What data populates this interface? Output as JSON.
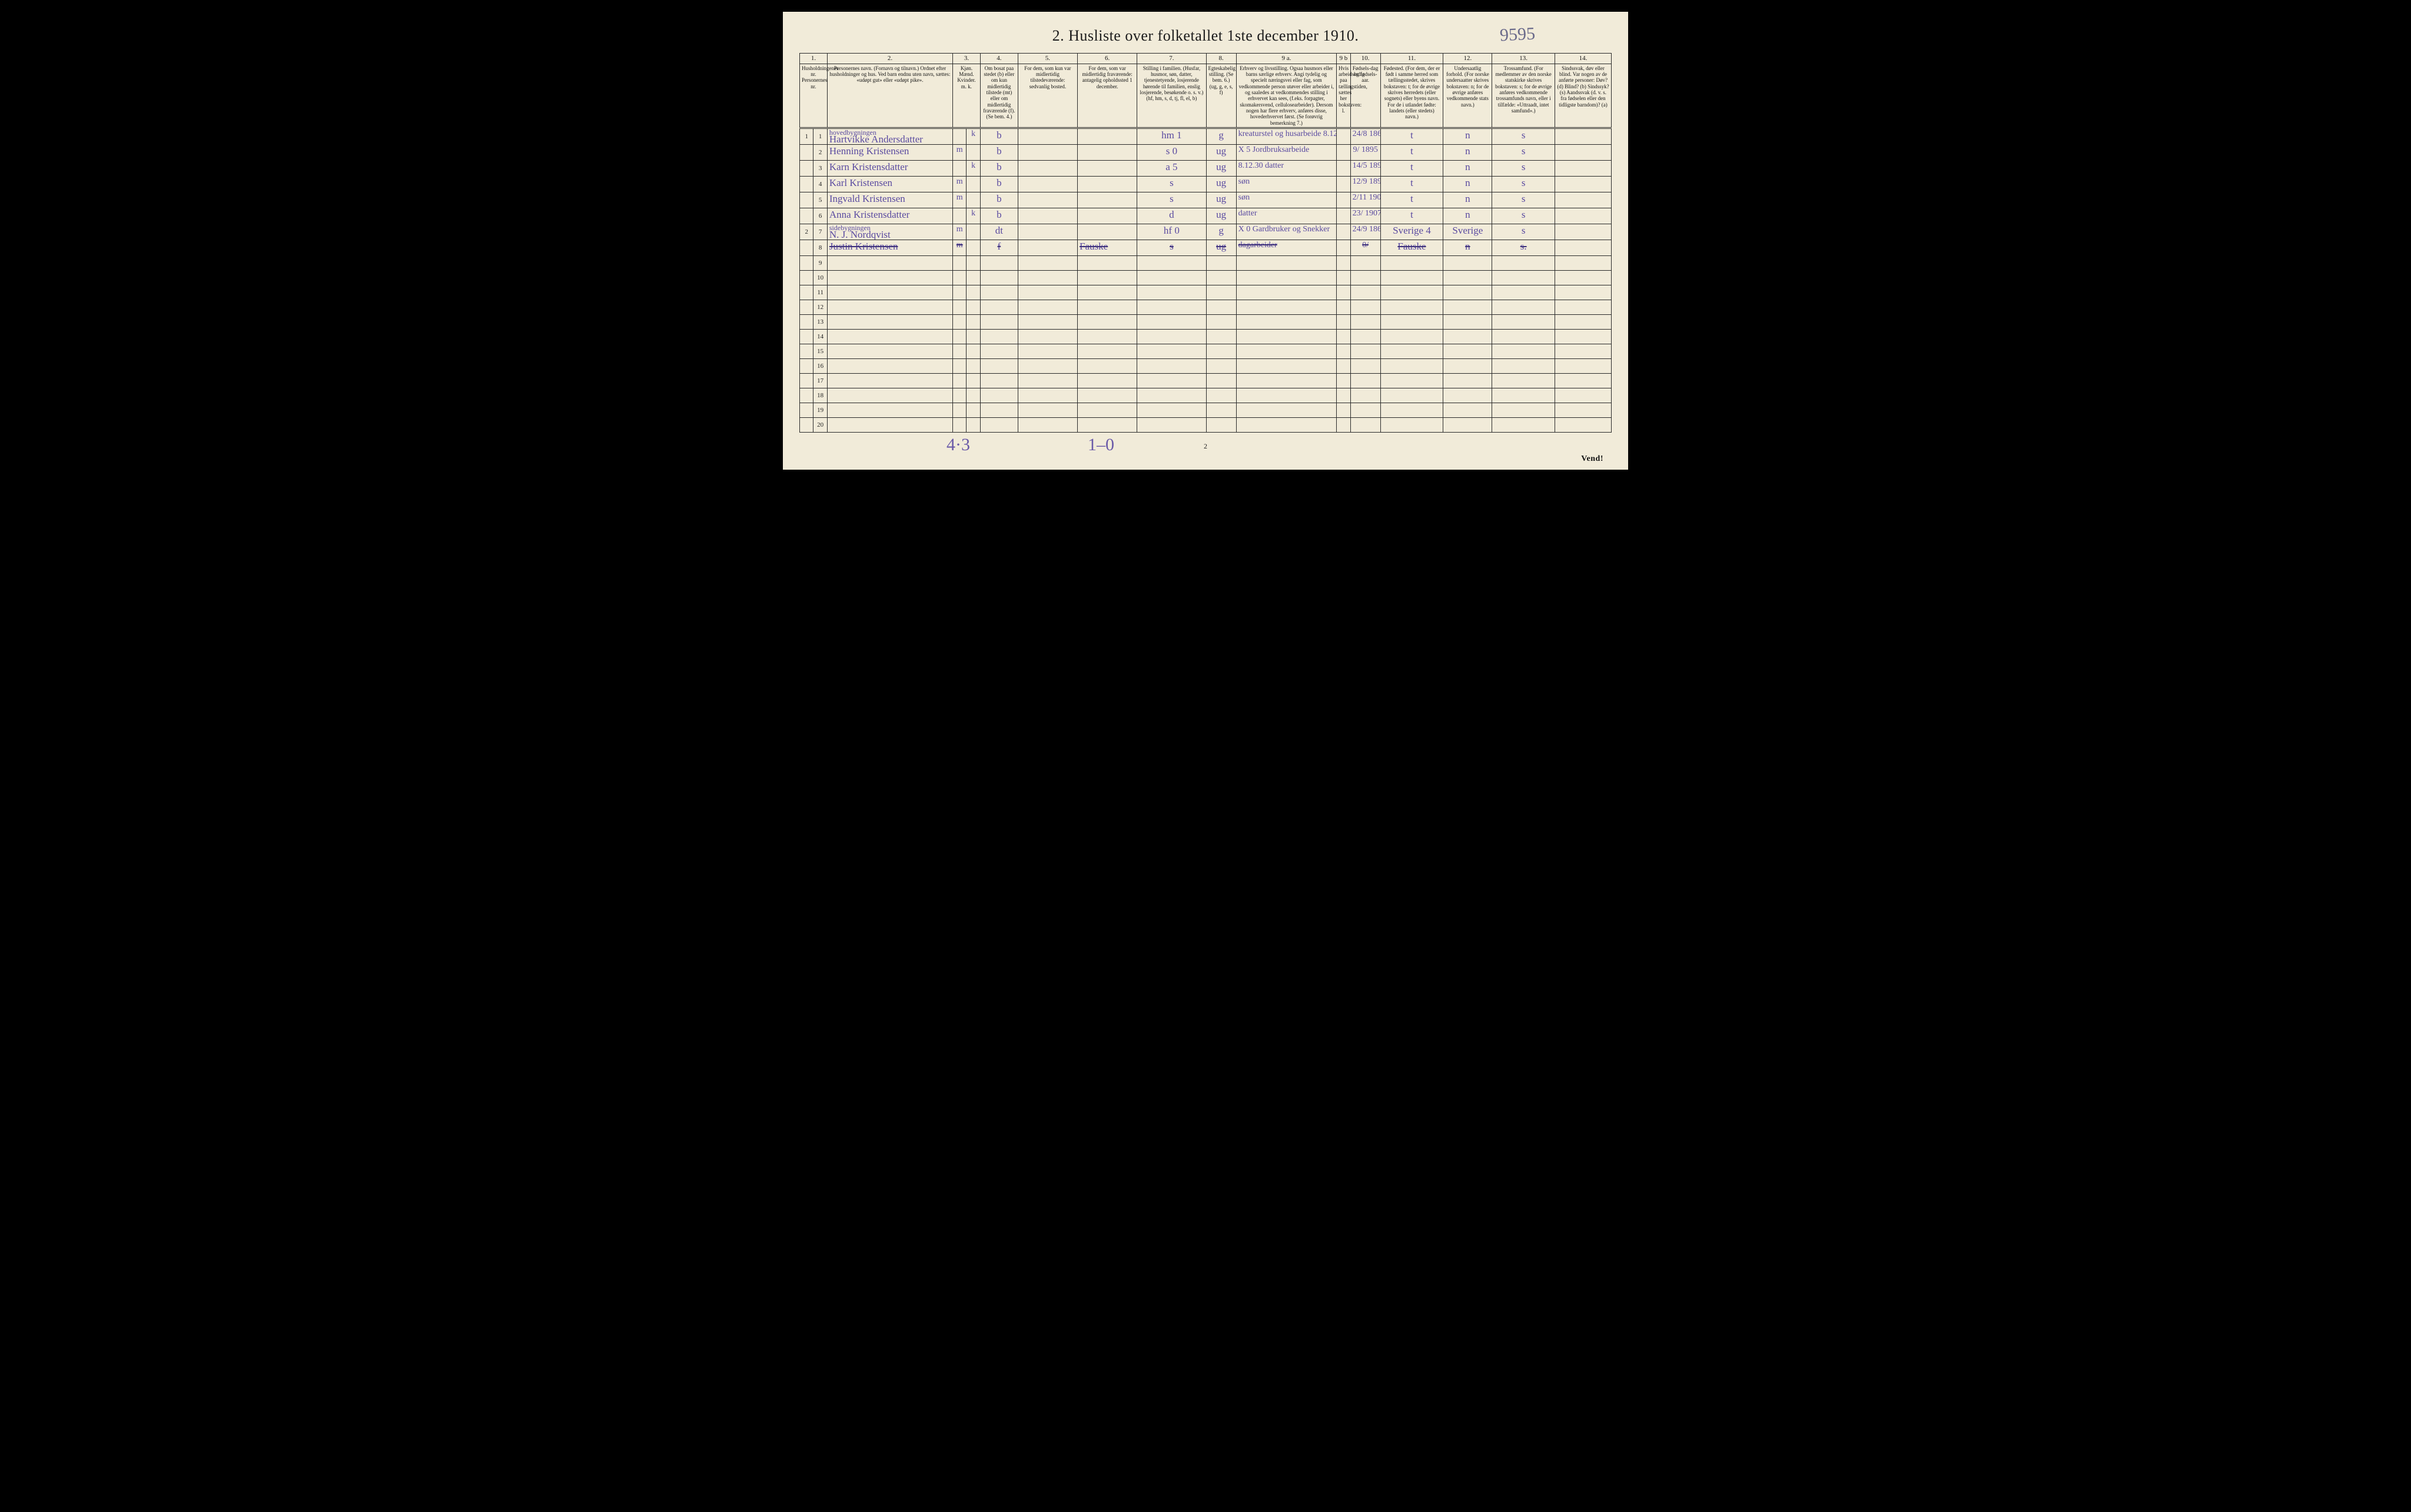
{
  "title": "2.  Husliste over folketallet 1ste december 1910.",
  "top_annotation": "9595",
  "page_number_bottom": "2",
  "vend_label": "Vend!",
  "footer_tallies": {
    "left": "4·3",
    "right": "1–0"
  },
  "colors": {
    "paper": "#f1ebd9",
    "ink": "#1b1b1b",
    "rule": "#2a2a2a",
    "handwriting": "#5a4aa0",
    "background": "#000000"
  },
  "header_numbers": [
    "1.",
    "2.",
    "3.",
    "4.",
    "5.",
    "6.",
    "7.",
    "8.",
    "9 a.",
    "9 b",
    "10.",
    "11.",
    "12.",
    "13.",
    "14."
  ],
  "header_text": {
    "c1": "Husholdningenes nr.\nPersonernes nr.",
    "c2": "Personernes navn.\n(Fornavn og tilnavn.)\nOrdnet efter husholdninger og hus.\nVed barn endnu uten navn, sættes: «udøpt gut» eller «udøpt pike».",
    "c3": "Kjøn.\nMænd.  Kvinder.\nm.  k.",
    "c4": "Om bosat paa stedet (b) eller om kun midlertidig tilstede (mt) eller om midlertidig fraværende (f).\n(Se bem. 4.)",
    "c5": "For dem, som kun var midlertidig tilstedeværende:\nsedvanlig bosted.",
    "c6": "For dem, som var midlertidig fraværende:\nantagelig opholdssted 1 december.",
    "c7": "Stilling i familien.\n(Husfar, husmor, søn, datter, tjenestetyende, losjerende hørende til familien, enslig losjerende, besøkende o. s. v.)\n(hf, hm, s, d, tj, fl, el, b)",
    "c8": "Egteskabelig stilling.\n(Se bem. 6.)\n(ug, g, e, s, f)",
    "c9a": "Erhverv og livsstilling.\nOgsaa husmors eller barns særlige erhverv. Angi tydelig og specielt næringsvei eller fag, som vedkommende person utøver eller arbeider i, og saaledes at vedkommendes stilling i erhvervet kan sees, (f.eks. forpagter, skomakersvend, cellulosearbeider). Dersom nogen har flere erhverv, anføres disse, hovederhvervet først.\n(Se forøvrig bemerkning 7.)",
    "c9b": "Hvis arbeidsledig paa tællingstiden, sættes her bokstaven: l.",
    "c10": "Fødsels-dag og fødsels-aar.",
    "c11": "Fødested.\n(For dem, der er født i samme herred som tællingsstedet, skrives bokstaven: t; for de øvrige skrives herredets (eller sognets) eller byens navn. For de i utlandet fødte: landets (eller stedets) navn.)",
    "c12": "Undersaatlig forhold.\n(For norske undersaatter skrives bokstaven: n; for de øvrige anføres vedkommende stats navn.)",
    "c13": "Trossamfund.\n(For medlemmer av den norske statskirke skrives bokstaven: s; for de øvrige anføres vedkommende trossamfunds navn, eller i tilfælde: «Uttraadt, intet samfund».)",
    "c14": "Sindssvak, døv eller blind.\nVar nogen av de anførte personer:\nDøv?  (d)\nBlind?  (b)\nSindssyk?  (s)\nAandssvak (d. v. s. fra fødselen eller den tidligste barndom)?  (a)"
  },
  "rows": [
    {
      "hh": "1",
      "pn": "1",
      "name_over": "hovedbygningen",
      "name": "Hartvikke Andersdatter",
      "sex": "k",
      "res": "b",
      "c5": "",
      "c6": "",
      "fam": "hm",
      "fam2": "1",
      "mar": "g",
      "occ": "kreaturstel og husarbeide  8.12.30",
      "c9b": "",
      "birth": "24/8 1862",
      "place": "t",
      "nat": "n",
      "rel": "s",
      "c14": ""
    },
    {
      "hh": "",
      "pn": "2",
      "name": "Henning Kristensen",
      "sex": "m",
      "res": "b",
      "c5": "",
      "c6": "",
      "fam": "s",
      "fam2": "0",
      "mar": "ug",
      "occ": "X 5  Jordbruksarbeide",
      "c9b": "",
      "birth": "9/ 1895",
      "place": "t",
      "nat": "n",
      "rel": "s",
      "c14": ""
    },
    {
      "hh": "",
      "pn": "3",
      "name": "Karn  Kristensdatter",
      "sex": "k",
      "res": "b",
      "c5": "",
      "c6": "",
      "fam": "a",
      "fam2": "5",
      "mar": "ug",
      "occ": "8.12.30  datter",
      "c9b": "",
      "birth": "14/5 1897",
      "place": "t",
      "nat": "n",
      "rel": "s",
      "c14": ""
    },
    {
      "hh": "",
      "pn": "4",
      "name": "Karl  Kristensen",
      "sex": "m",
      "res": "b",
      "c5": "",
      "c6": "",
      "fam": "s",
      "fam2": "",
      "mar": "ug",
      "occ": "søn",
      "c9b": "",
      "birth": "12/9 1899",
      "place": "t",
      "nat": "n",
      "rel": "s",
      "c14": ""
    },
    {
      "hh": "",
      "pn": "5",
      "name": "Ingvald Kristensen",
      "sex": "m",
      "res": "b",
      "c5": "",
      "c6": "",
      "fam": "s",
      "fam2": "",
      "mar": "ug",
      "occ": "søn",
      "c9b": "",
      "birth": "2/11 1901",
      "place": "t",
      "nat": "n",
      "rel": "s",
      "c14": ""
    },
    {
      "hh": "",
      "pn": "6",
      "name": "Anna Kristensdatter",
      "sex": "k",
      "res": "b",
      "c5": "",
      "c6": "",
      "fam": "d",
      "fam2": "",
      "mar": "ug",
      "occ": "datter",
      "c9b": "",
      "birth": "23/  1907",
      "place": "t",
      "nat": "n",
      "rel": "s",
      "c14": ""
    },
    {
      "hh": "2",
      "pn": "7",
      "name_over": "sidebygningen",
      "name": "N. J.  Nordqvist",
      "sex": "m",
      "res": "dt",
      "c5": "",
      "c6": "",
      "fam": "hf",
      "fam2": "0",
      "mar": "g",
      "occ": "X 0  Gardbruker og Snekker",
      "c9b": "",
      "birth": "24/9 1865",
      "place": "Sverige  4",
      "nat": "Sverige",
      "rel": "s",
      "c14": ""
    },
    {
      "hh": "",
      "pn": "8",
      "name": "Justin Kristensen",
      "sex": "m",
      "res": "f",
      "c5": "",
      "c6": "Fauske",
      "fam": "s",
      "fam2": "",
      "mar": "ug",
      "occ": "dagarbeider",
      "c9b": "",
      "birth": "0/",
      "place": "Fauske",
      "nat": "n",
      "rel": "s.",
      "c14": "",
      "struck": true
    }
  ],
  "blank_row_numbers": [
    "9",
    "10",
    "11",
    "12",
    "13",
    "14",
    "15",
    "16",
    "17",
    "18",
    "19",
    "20"
  ]
}
